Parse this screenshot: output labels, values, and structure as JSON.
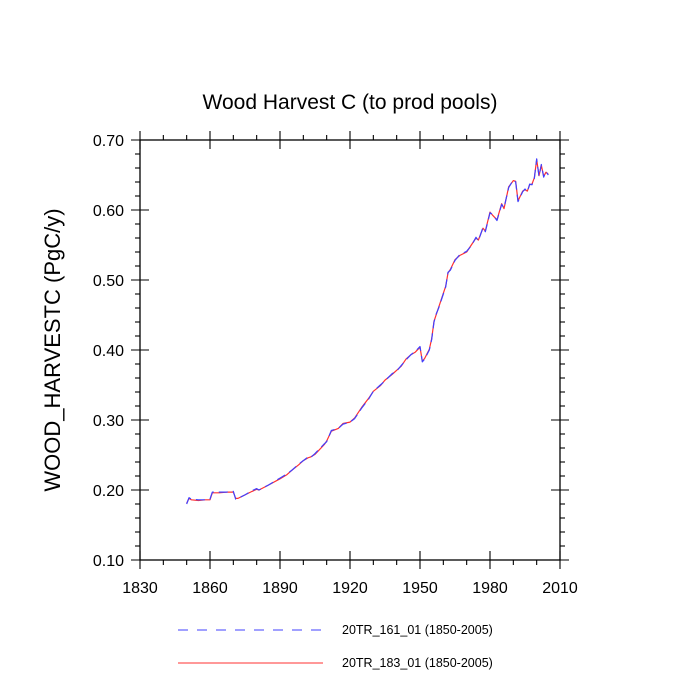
{
  "chart_data": {
    "type": "line",
    "title": "Wood Harvest C (to prod pools)",
    "xlabel": "",
    "ylabel": "WOOD_HARVESTC  (PgC/y)",
    "xlim": [
      1830,
      2010
    ],
    "ylim": [
      0.1,
      0.7
    ],
    "x_ticks": [
      1830,
      1860,
      1890,
      1920,
      1950,
      1980,
      2010
    ],
    "y_ticks": [
      0.1,
      0.2,
      0.3,
      0.4,
      0.5,
      0.6,
      0.7
    ],
    "x_tick_labels": [
      "1830",
      "1860",
      "1890",
      "1920",
      "1950",
      "1980",
      "2010"
    ],
    "y_tick_labels": [
      "0.10",
      "0.20",
      "0.30",
      "0.40",
      "0.50",
      "0.60",
      "0.70"
    ],
    "grid": false,
    "legend_position": "bottom",
    "series": [
      {
        "name": "20TR_161_01 (1850-2005)",
        "color": "#4040ff",
        "style": "dashed",
        "x": [
          1850,
          1851,
          1852,
          1855,
          1858,
          1860,
          1861,
          1864,
          1867,
          1870,
          1871,
          1872,
          1875,
          1878,
          1880,
          1881,
          1885,
          1890,
          1893,
          1895,
          1898,
          1900,
          1902,
          1903,
          1905,
          1907,
          1909,
          1910,
          1912,
          1915,
          1917,
          1920,
          1922,
          1925,
          1928,
          1930,
          1933,
          1935,
          1938,
          1940,
          1942,
          1944,
          1946,
          1948,
          1950,
          1951,
          1952,
          1954,
          1955,
          1956,
          1957,
          1958,
          1959,
          1960,
          1961,
          1962,
          1963,
          1965,
          1967,
          1970,
          1972,
          1974,
          1975,
          1977,
          1978,
          1980,
          1981,
          1983,
          1985,
          1986,
          1988,
          1990,
          1991,
          1992,
          1994,
          1995,
          1996,
          1997,
          1998,
          1999,
          2000,
          2001,
          2002,
          2003,
          2004,
          2005
        ],
        "y": [
          0.18,
          0.189,
          0.187,
          0.186,
          0.186,
          0.187,
          0.197,
          0.197,
          0.197,
          0.198,
          0.187,
          0.188,
          0.193,
          0.199,
          0.202,
          0.2,
          0.207,
          0.217,
          0.223,
          0.228,
          0.237,
          0.242,
          0.247,
          0.246,
          0.252,
          0.259,
          0.266,
          0.269,
          0.285,
          0.288,
          0.294,
          0.297,
          0.302,
          0.317,
          0.33,
          0.341,
          0.35,
          0.356,
          0.366,
          0.37,
          0.378,
          0.386,
          0.393,
          0.398,
          0.405,
          0.383,
          0.387,
          0.4,
          0.415,
          0.44,
          0.452,
          0.46,
          0.47,
          0.48,
          0.49,
          0.511,
          0.514,
          0.528,
          0.536,
          0.541,
          0.549,
          0.561,
          0.556,
          0.575,
          0.569,
          0.596,
          0.594,
          0.585,
          0.608,
          0.603,
          0.632,
          0.643,
          0.64,
          0.612,
          0.626,
          0.63,
          0.626,
          0.637,
          0.636,
          0.645,
          0.673,
          0.648,
          0.665,
          0.647,
          0.655,
          0.65
        ]
      },
      {
        "name": "20TR_183_01 (1850-2005)",
        "color": "#ff3030",
        "style": "solid",
        "x": [
          1850,
          1851,
          1852,
          1855,
          1858,
          1860,
          1861,
          1864,
          1867,
          1870,
          1871,
          1872,
          1875,
          1878,
          1880,
          1881,
          1885,
          1890,
          1893,
          1895,
          1898,
          1900,
          1902,
          1903,
          1905,
          1907,
          1909,
          1910,
          1912,
          1915,
          1917,
          1920,
          1922,
          1925,
          1928,
          1930,
          1933,
          1935,
          1938,
          1940,
          1942,
          1944,
          1946,
          1948,
          1950,
          1951,
          1952,
          1954,
          1955,
          1956,
          1957,
          1958,
          1959,
          1960,
          1961,
          1962,
          1963,
          1965,
          1967,
          1970,
          1972,
          1974,
          1975,
          1977,
          1978,
          1980,
          1981,
          1983,
          1985,
          1986,
          1988,
          1990,
          1991,
          1992,
          1994,
          1995,
          1996,
          1997,
          1998,
          1999,
          2000,
          2001,
          2002,
          2003,
          2004,
          2005
        ],
        "y": [
          0.181,
          0.188,
          0.186,
          0.185,
          0.186,
          0.186,
          0.196,
          0.196,
          0.197,
          0.197,
          0.188,
          0.188,
          0.193,
          0.198,
          0.201,
          0.2,
          0.207,
          0.216,
          0.222,
          0.228,
          0.236,
          0.242,
          0.246,
          0.247,
          0.251,
          0.258,
          0.265,
          0.27,
          0.284,
          0.288,
          0.295,
          0.297,
          0.303,
          0.318,
          0.331,
          0.341,
          0.349,
          0.357,
          0.365,
          0.371,
          0.377,
          0.387,
          0.393,
          0.397,
          0.404,
          0.384,
          0.388,
          0.401,
          0.416,
          0.441,
          0.451,
          0.461,
          0.471,
          0.481,
          0.491,
          0.51,
          0.515,
          0.529,
          0.535,
          0.54,
          0.55,
          0.56,
          0.557,
          0.574,
          0.57,
          0.597,
          0.593,
          0.586,
          0.609,
          0.602,
          0.633,
          0.642,
          0.641,
          0.613,
          0.627,
          0.629,
          0.627,
          0.636,
          0.637,
          0.646,
          0.672,
          0.649,
          0.664,
          0.648,
          0.654,
          0.651
        ]
      }
    ]
  }
}
